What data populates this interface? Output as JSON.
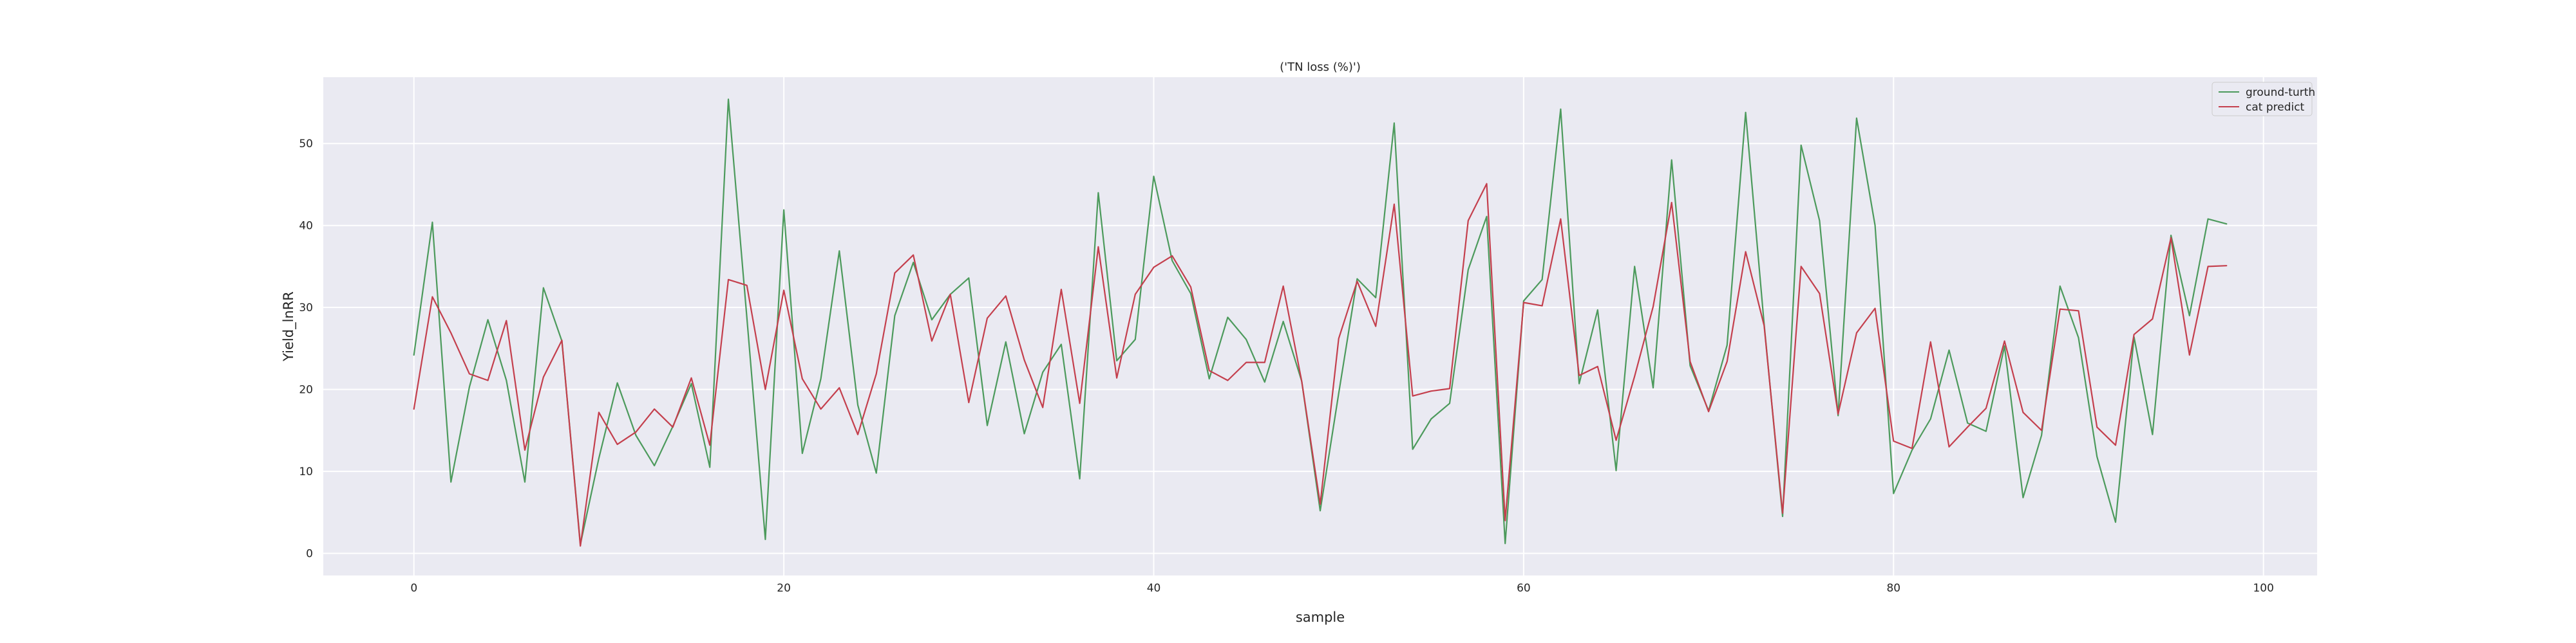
{
  "chart_data": {
    "type": "line",
    "title": "('TN loss (%)')",
    "xlabel": "sample",
    "ylabel": "Yield_lnRR",
    "xlim": [
      -4.9,
      102.9
    ],
    "ylim": [
      -2.7,
      58.1
    ],
    "xticks": [
      0,
      20,
      40,
      60,
      80,
      100
    ],
    "yticks": [
      0,
      10,
      20,
      30,
      40,
      50
    ],
    "grid": true,
    "legend_position": "top-right",
    "background": "#eaeaf2",
    "series": [
      {
        "name": "ground-turth",
        "color": "#4c9a5c",
        "values": [
          24.2,
          40.4,
          8.7,
          20.3,
          28.5,
          21.1,
          8.7,
          32.4,
          25.9,
          1.1,
          11.6,
          20.8,
          14.4,
          10.7,
          15.5,
          20.7,
          10.5,
          55.4,
          28.8,
          1.7,
          41.9,
          12.2,
          21.3,
          36.9,
          18.1,
          9.8,
          29.0,
          35.5,
          28.5,
          31.6,
          33.6,
          15.6,
          25.8,
          14.6,
          22.1,
          25.5,
          9.1,
          44.0,
          23.5,
          26.1,
          46.0,
          35.7,
          31.7,
          21.3,
          28.8,
          26.1,
          20.9,
          28.3,
          21.0,
          5.2,
          19.5,
          33.5,
          31.2,
          52.5,
          12.7,
          16.4,
          18.3,
          34.6,
          41.1,
          1.2,
          30.8,
          33.4,
          54.2,
          20.7,
          29.7,
          10.1,
          35.0,
          20.2,
          48.0,
          22.9,
          17.4,
          25.4,
          53.8,
          28.0,
          4.5,
          49.8,
          40.6,
          16.8,
          53.1,
          40.0,
          7.3,
          12.6,
          16.4,
          24.8,
          15.9,
          14.9,
          25.3,
          6.8,
          14.4,
          32.6,
          26.3,
          11.8,
          3.8,
          26.4,
          14.5,
          38.8,
          29.0,
          40.8,
          40.2
        ]
      },
      {
        "name": "cat predict",
        "color": "#c43f4d",
        "values": [
          17.6,
          31.3,
          26.9,
          21.9,
          21.1,
          28.4,
          12.6,
          21.5,
          26.0,
          0.9,
          17.2,
          13.3,
          14.8,
          17.6,
          15.4,
          21.4,
          13.2,
          33.4,
          32.7,
          20.0,
          32.1,
          21.3,
          17.6,
          20.2,
          14.5,
          21.9,
          34.2,
          36.4,
          25.9,
          31.6,
          18.4,
          28.7,
          31.4,
          23.6,
          17.8,
          32.2,
          18.3,
          37.4,
          21.4,
          31.6,
          34.9,
          36.3,
          32.5,
          22.3,
          21.1,
          23.3,
          23.3,
          32.6,
          21.0,
          6.0,
          26.2,
          33.2,
          27.7,
          42.6,
          19.2,
          19.8,
          20.1,
          40.6,
          45.1,
          4.0,
          30.6,
          30.2,
          40.8,
          21.7,
          22.8,
          13.8,
          21.6,
          30.1,
          42.8,
          23.4,
          17.3,
          23.4,
          36.8,
          27.8,
          4.9,
          35.0,
          31.7,
          17.0,
          26.9,
          29.9,
          13.7,
          12.8,
          25.8,
          13.0,
          15.4,
          17.7,
          25.9,
          17.2,
          15.0,
          29.8,
          29.6,
          15.4,
          13.2,
          26.7,
          28.6,
          38.5,
          24.2,
          35.0,
          35.1
        ]
      }
    ]
  }
}
